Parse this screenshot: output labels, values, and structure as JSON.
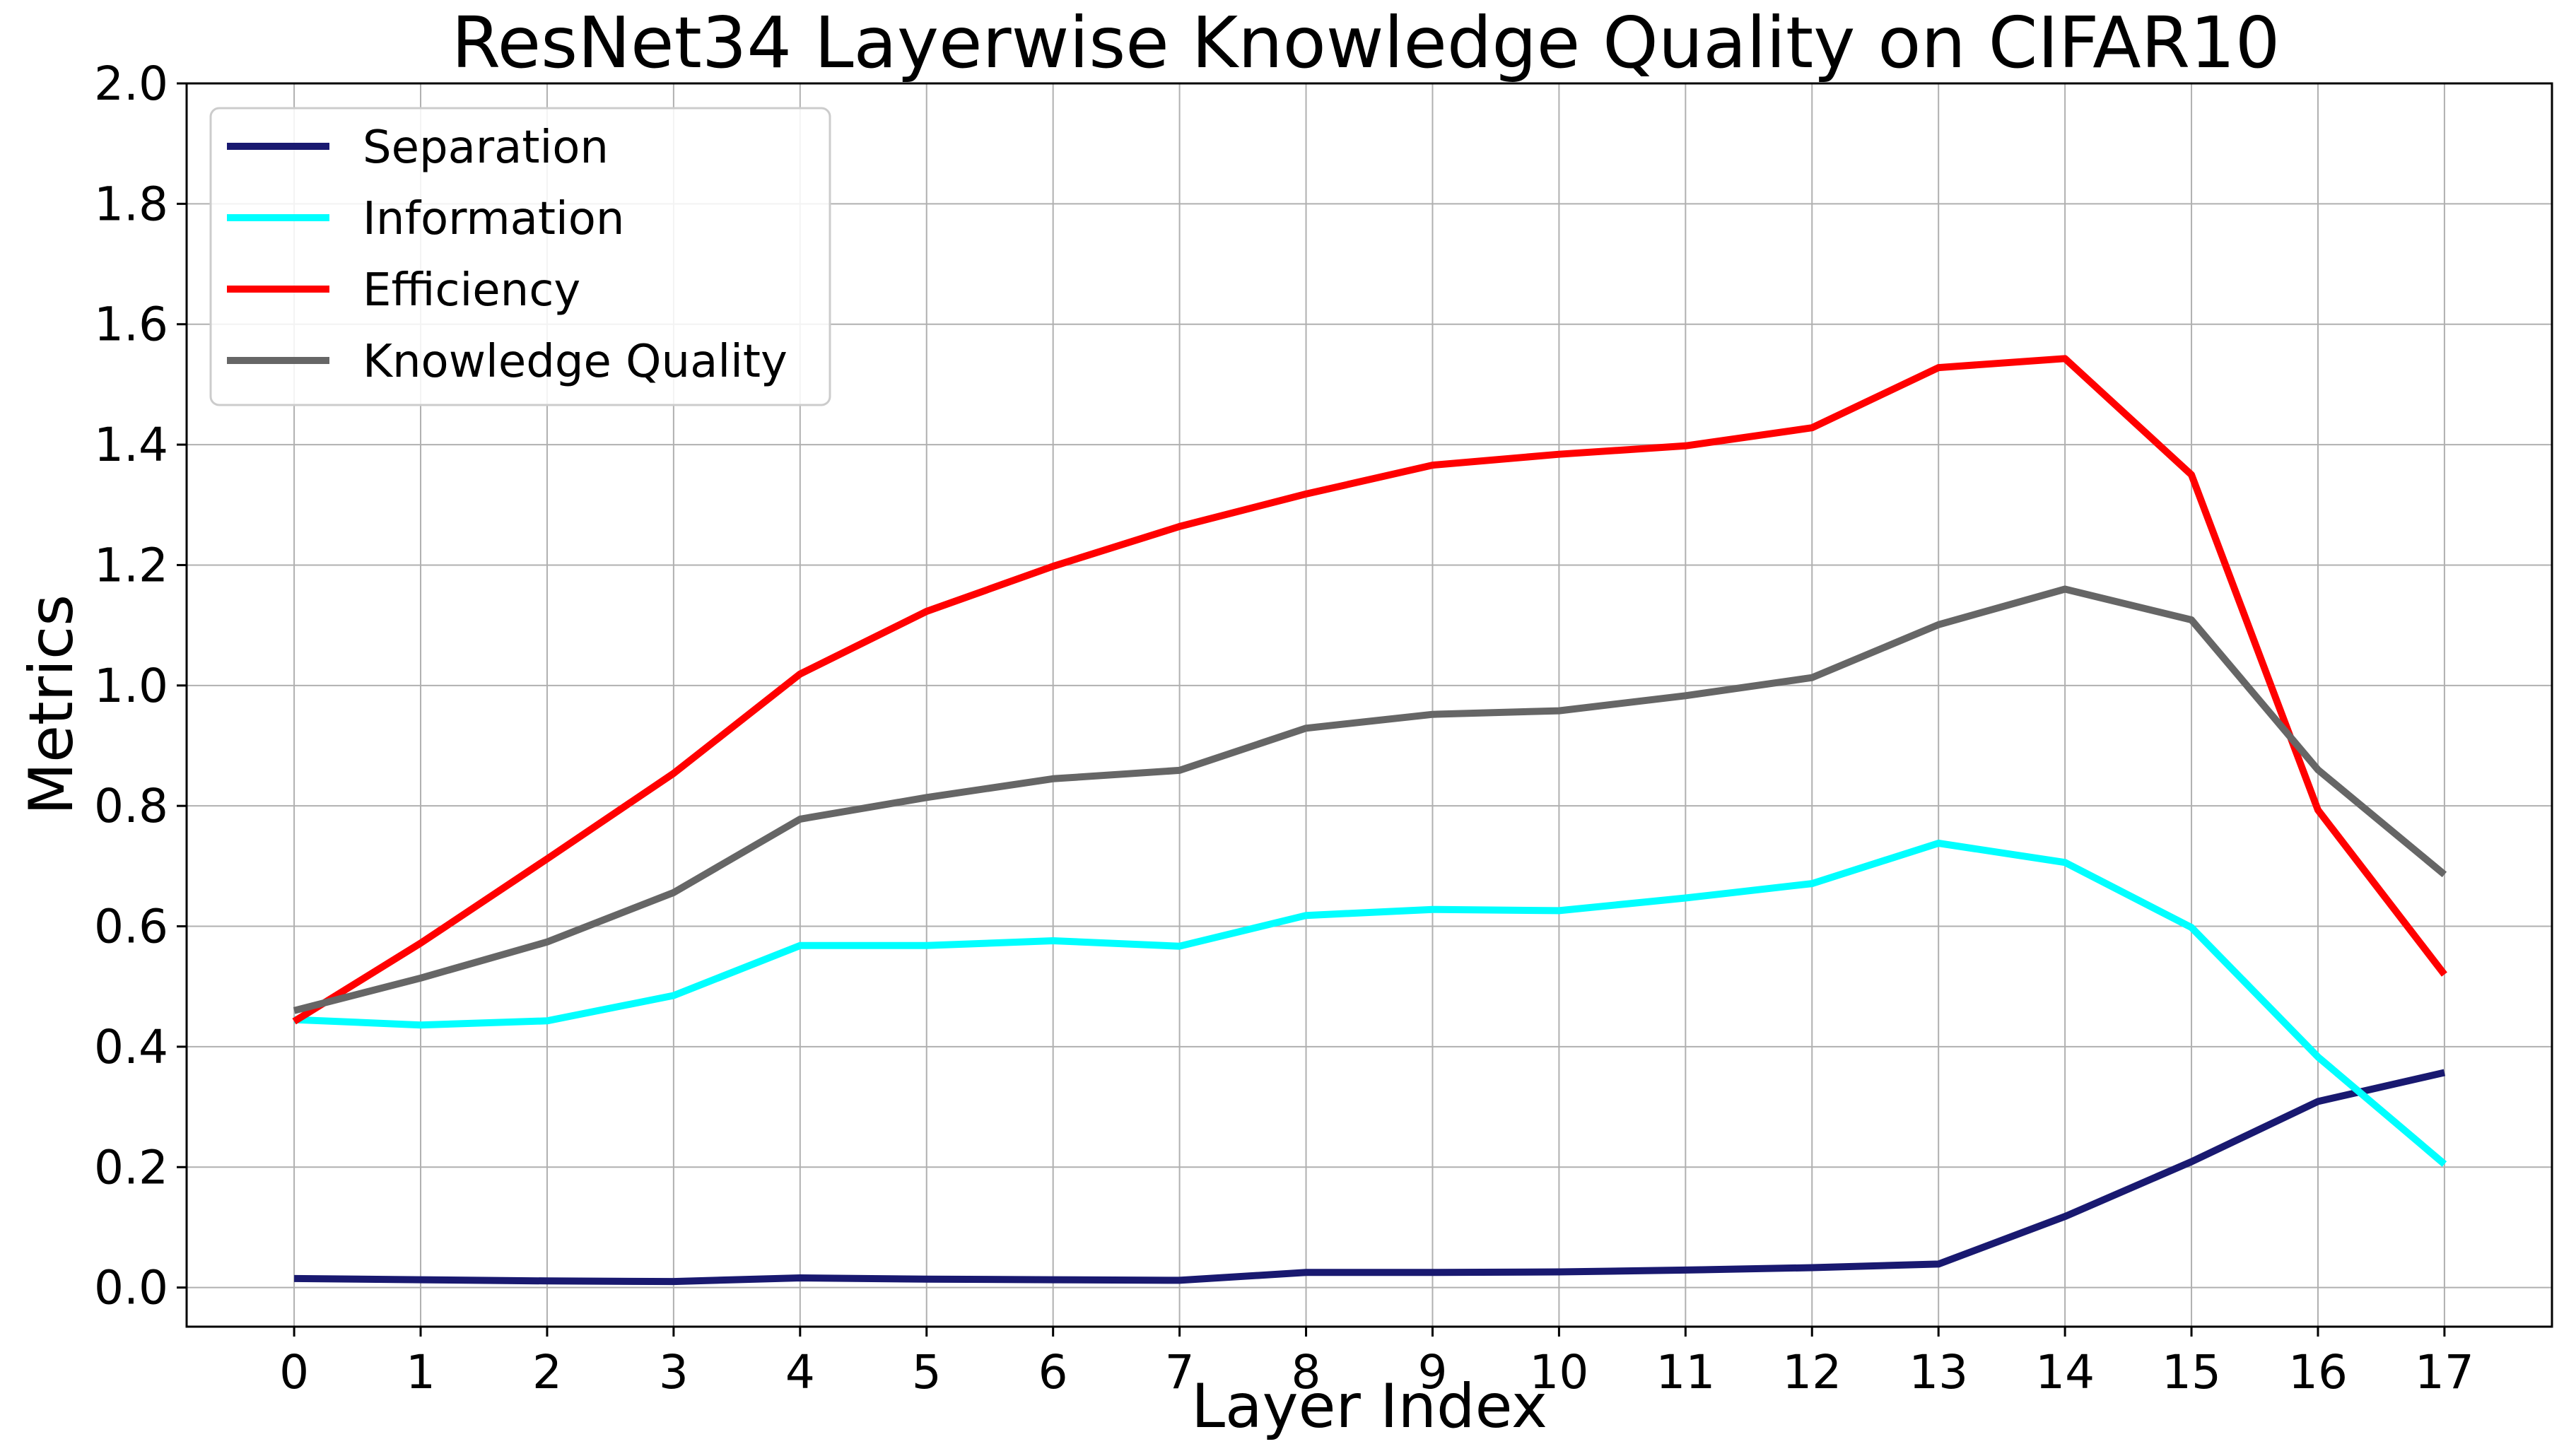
{
  "chart_data": {
    "type": "line",
    "title": "ResNet34 Layerwise Knowledge Quality on CIFAR10",
    "xlabel": "Layer Index",
    "ylabel": "Metrics",
    "x": [
      0,
      1,
      2,
      3,
      4,
      5,
      6,
      7,
      8,
      9,
      10,
      11,
      12,
      13,
      14,
      15,
      16,
      17
    ],
    "xlim": [
      -0.85,
      17.85
    ],
    "ylim": [
      -0.065,
      2.0
    ],
    "yticks": [
      0.0,
      0.2,
      0.4,
      0.6,
      0.8,
      1.0,
      1.2,
      1.4,
      1.6,
      1.8,
      2.0
    ],
    "ytick_labels": [
      "0.0",
      "0.2",
      "0.4",
      "0.6",
      "0.8",
      "1.0",
      "1.2",
      "1.4",
      "1.6",
      "1.8",
      "2.0"
    ],
    "xtick_labels": [
      "0",
      "1",
      "2",
      "3",
      "4",
      "5",
      "6",
      "7",
      "8",
      "9",
      "10",
      "11",
      "12",
      "13",
      "14",
      "15",
      "16",
      "17"
    ],
    "grid": true,
    "legend_position": "top-left",
    "series": [
      {
        "name": "Separation",
        "color": "#191970",
        "values": [
          0.015,
          0.013,
          0.011,
          0.01,
          0.016,
          0.014,
          0.013,
          0.012,
          0.025,
          0.025,
          0.026,
          0.029,
          0.033,
          0.039,
          0.118,
          0.209,
          0.309,
          0.357
        ]
      },
      {
        "name": "Information",
        "color": "#00ffff",
        "values": [
          0.445,
          0.436,
          0.443,
          0.485,
          0.568,
          0.568,
          0.576,
          0.567,
          0.618,
          0.628,
          0.626,
          0.647,
          0.671,
          0.738,
          0.706,
          0.598,
          0.383,
          0.205
        ]
      },
      {
        "name": "Efficiency",
        "color": "#ff0000",
        "values": [
          0.442,
          0.572,
          0.712,
          0.854,
          1.019,
          1.123,
          1.198,
          1.264,
          1.318,
          1.366,
          1.384,
          1.398,
          1.428,
          1.528,
          1.543,
          1.35,
          0.793,
          0.52
        ]
      },
      {
        "name": "Knowledge Quality",
        "color": "#666666",
        "values": [
          0.46,
          0.514,
          0.574,
          0.656,
          0.778,
          0.814,
          0.845,
          0.859,
          0.929,
          0.952,
          0.958,
          0.983,
          1.013,
          1.101,
          1.16,
          1.109,
          0.86,
          0.686
        ]
      }
    ]
  }
}
